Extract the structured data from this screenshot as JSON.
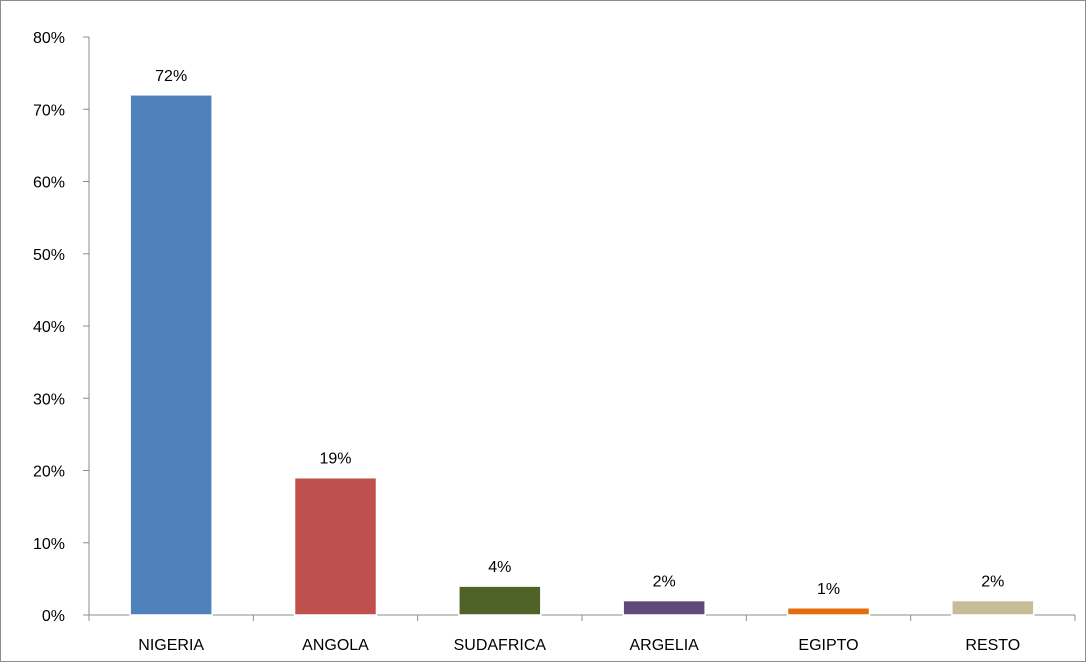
{
  "chart_data": {
    "type": "bar",
    "categories": [
      "NIGERIA",
      "ANGOLA",
      "SUDAFRICA",
      "ARGELIA",
      "EGIPTO",
      "RESTO"
    ],
    "values": [
      72,
      19,
      4,
      2,
      1,
      2
    ],
    "data_labels": [
      "72%",
      "19%",
      "4%",
      "2%",
      "1%",
      "2%"
    ],
    "bar_colors": [
      "#4f81bd",
      "#c0504d",
      "#4f6228",
      "#604a7b",
      "#e46c0a",
      "#c4bd97"
    ],
    "ylim": [
      0,
      80
    ],
    "yticks": [
      0,
      10,
      20,
      30,
      40,
      50,
      60,
      70,
      80
    ],
    "ytick_labels": [
      "0%",
      "10%",
      "20%",
      "30%",
      "40%",
      "50%",
      "60%",
      "70%",
      "80%"
    ],
    "title": "",
    "xlabel": "",
    "ylabel": "",
    "grid": false,
    "legend": "none"
  }
}
